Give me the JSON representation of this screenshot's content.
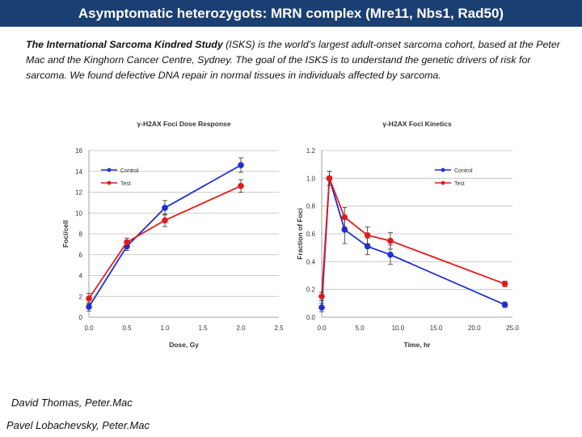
{
  "header": {
    "title": "Asymptomatic heterozygots: MRN complex (Mre11, Nbs1, Rad50)"
  },
  "intro": {
    "study_name": "The International Sarcoma Kindred Study",
    "text": " (ISKS) is the world’s largest adult-onset sarcoma cohort, based at the Peter Mac and the Kinghorn Cancer Centre, Sydney. The goal of the ISKS is to understand the genetic drivers of risk for sarcoma. We found defective DNA repair in normal tissues in individuals affected by sarcoma."
  },
  "credits": {
    "line1": "David Thomas, Peter.Mac",
    "line2": "Pavel Lobachevsky, Peter.Mac"
  },
  "colors": {
    "control": "#1f2fd6",
    "test": "#e11b1b",
    "grid": "#bdbdbd",
    "title_bg": "#1a3f73"
  },
  "chart_data": [
    {
      "type": "line",
      "title": "γ-H2AX Foci Dose Response",
      "xlabel": "Dose, Gy",
      "ylabel": "Foci/cell",
      "xlim": [
        0,
        2.5
      ],
      "ylim": [
        0,
        16
      ],
      "xticks": [
        0,
        0.5,
        1,
        1.5,
        2,
        2.5
      ],
      "xtick_labels": [
        "0.0",
        "0.5",
        "1.0",
        "1.5",
        "2.0",
        "2.5"
      ],
      "yticks": [
        0,
        2,
        4,
        6,
        8,
        10,
        12,
        14,
        16
      ],
      "ytick_labels": [
        "0",
        "2",
        "4",
        "6",
        "8",
        "10",
        "12",
        "14",
        "16"
      ],
      "grid": true,
      "legend_position": "top-left",
      "series": [
        {
          "name": "Control",
          "color": "#1f2fd6",
          "x": [
            0,
            0.5,
            1,
            2
          ],
          "y": [
            1.0,
            6.8,
            10.5,
            14.6
          ],
          "err": [
            0.4,
            0.4,
            0.7,
            0.7
          ]
        },
        {
          "name": "Test",
          "color": "#e11b1b",
          "x": [
            0,
            0.5,
            1,
            2
          ],
          "y": [
            1.8,
            7.2,
            9.3,
            12.6
          ],
          "err": [
            0.5,
            0.4,
            0.6,
            0.6
          ]
        }
      ]
    },
    {
      "type": "line",
      "title": "γ-H2AX Foci Kinetics",
      "xlabel": "Time, hr",
      "ylabel": "Fraction of Foci",
      "xlim": [
        0,
        25
      ],
      "ylim": [
        0,
        1.2
      ],
      "xticks": [
        0,
        5,
        10,
        15,
        20,
        25
      ],
      "xtick_labels": [
        "0.0",
        "5.0",
        "10.0",
        "15.0",
        "20.0",
        "25.0"
      ],
      "yticks": [
        0,
        0.2,
        0.4,
        0.6,
        0.8,
        1.0,
        1.2
      ],
      "ytick_labels": [
        "0.0",
        "0.2",
        "0.4",
        "0.6",
        "0.8",
        "1.0",
        "1.2"
      ],
      "grid": true,
      "legend_position": "top-right",
      "series": [
        {
          "name": "Control",
          "color": "#1f2fd6",
          "x": [
            0,
            1,
            3,
            6,
            9,
            24
          ],
          "y": [
            0.07,
            1.0,
            0.63,
            0.51,
            0.45,
            0.09
          ],
          "err": [
            0.03,
            0.05,
            0.1,
            0.06,
            0.07,
            0.02
          ]
        },
        {
          "name": "Test",
          "color": "#e11b1b",
          "x": [
            0,
            1,
            3,
            6,
            9,
            24
          ],
          "y": [
            0.15,
            1.0,
            0.72,
            0.59,
            0.55,
            0.24
          ],
          "err": [
            0.03,
            0.05,
            0.07,
            0.06,
            0.06,
            0.02
          ]
        }
      ]
    }
  ]
}
